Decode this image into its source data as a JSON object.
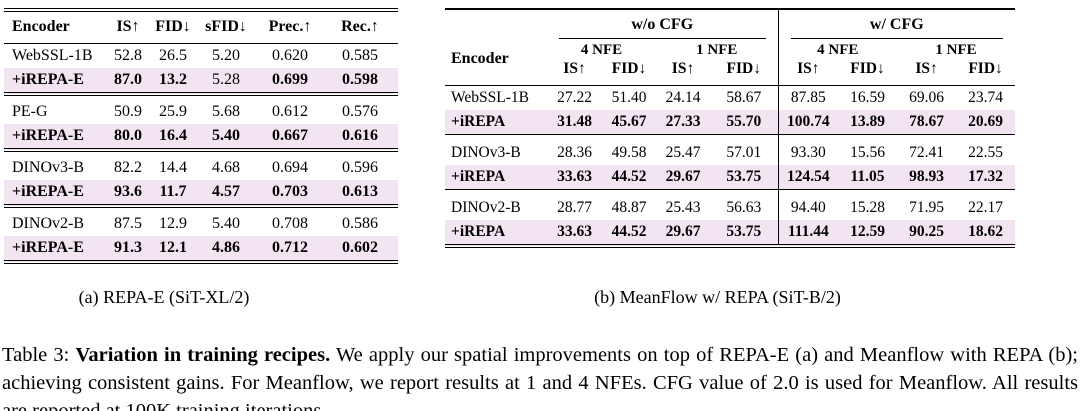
{
  "colors": {
    "highlight_row": "#F2E5F1",
    "rule": "#000000"
  },
  "table_a": {
    "columns": [
      "Encoder",
      "IS↑",
      "FID↓",
      "sFID↓",
      "Prec.↑",
      "Rec.↑"
    ],
    "groups": [
      {
        "rows": [
          {
            "label": "WebSSL-1B",
            "label_bold": false,
            "highlight": false,
            "values": [
              "52.8",
              "26.5",
              "5.20",
              "0.620",
              "0.585"
            ],
            "bold": false
          },
          {
            "label": "+iREPA-E",
            "label_bold": true,
            "highlight": true,
            "values": [
              "87.0",
              "13.2",
              "5.28",
              "0.699",
              "0.598"
            ],
            "bold": [
              true,
              true,
              false,
              true,
              true
            ]
          }
        ]
      },
      {
        "rows": [
          {
            "label": "PE-G",
            "label_bold": false,
            "highlight": false,
            "values": [
              "50.9",
              "25.9",
              "5.68",
              "0.612",
              "0.576"
            ],
            "bold": false
          },
          {
            "label": "+iREPA-E",
            "label_bold": true,
            "highlight": true,
            "values": [
              "80.0",
              "16.4",
              "5.40",
              "0.667",
              "0.616"
            ],
            "bold": true
          }
        ]
      },
      {
        "rows": [
          {
            "label": "DINOv3-B",
            "label_bold": false,
            "highlight": false,
            "values": [
              "82.2",
              "14.4",
              "4.68",
              "0.694",
              "0.596"
            ],
            "bold": false
          },
          {
            "label": "+iREPA-E",
            "label_bold": true,
            "highlight": true,
            "values": [
              "93.6",
              "11.7",
              "4.57",
              "0.703",
              "0.613"
            ],
            "bold": true
          }
        ]
      },
      {
        "rows": [
          {
            "label": "DINOv2-B",
            "label_bold": false,
            "highlight": false,
            "values": [
              "87.5",
              "12.9",
              "5.40",
              "0.708",
              "0.586"
            ],
            "bold": false
          },
          {
            "label": "+iREPA-E",
            "label_bold": true,
            "highlight": true,
            "values": [
              "91.3",
              "12.1",
              "4.86",
              "0.712",
              "0.602"
            ],
            "bold": true
          }
        ]
      }
    ],
    "subcaption": "(a) REPA-E (SiT-XL/2)"
  },
  "table_b": {
    "encoder_header": "Encoder",
    "col_groups": [
      {
        "label": "w/o CFG"
      },
      {
        "label": "w/ CFG"
      }
    ],
    "sub_groups": [
      "4 NFE",
      "1 NFE",
      "4 NFE",
      "1 NFE"
    ],
    "metric_headers": [
      "IS↑",
      "FID↓",
      "IS↑",
      "FID↓",
      "IS↑",
      "FID↓",
      "IS↑",
      "FID↓"
    ],
    "groups": [
      {
        "rows": [
          {
            "label": "WebSSL-1B",
            "label_bold": false,
            "highlight": false,
            "values": [
              "27.22",
              "51.40",
              "24.14",
              "58.67",
              "87.85",
              "16.59",
              "69.06",
              "23.74"
            ],
            "bold": false
          },
          {
            "label": "+iREPA",
            "label_bold": true,
            "highlight": true,
            "values": [
              "31.48",
              "45.67",
              "27.33",
              "55.70",
              "100.74",
              "13.89",
              "78.67",
              "20.69"
            ],
            "bold": true
          }
        ]
      },
      {
        "rows": [
          {
            "label": "DINOv3-B",
            "label_bold": false,
            "highlight": false,
            "values": [
              "28.36",
              "49.58",
              "25.47",
              "57.01",
              "93.30",
              "15.56",
              "72.41",
              "22.55"
            ],
            "bold": false
          },
          {
            "label": "+iREPA",
            "label_bold": true,
            "highlight": true,
            "values": [
              "33.63",
              "44.52",
              "29.67",
              "53.75",
              "124.54",
              "11.05",
              "98.93",
              "17.32"
            ],
            "bold": true
          }
        ]
      },
      {
        "rows": [
          {
            "label": "DINOv2-B",
            "label_bold": false,
            "highlight": false,
            "values": [
              "28.77",
              "48.87",
              "25.43",
              "56.63",
              "94.40",
              "15.28",
              "71.95",
              "22.17"
            ],
            "bold": false
          },
          {
            "label": "+iREPA",
            "label_bold": true,
            "highlight": true,
            "values": [
              "33.63",
              "44.52",
              "29.67",
              "53.75",
              "111.44",
              "12.59",
              "90.25",
              "18.62"
            ],
            "bold": true
          }
        ]
      }
    ],
    "subcaption": "(b) MeanFlow w/ REPA (SiT-B/2)"
  },
  "caption": {
    "prefix": "Table 3:",
    "bold": "Variation in training recipes.",
    "text": "We apply our spatial improvements on top of REPA-E (a) and Meanflow with REPA (b); achieving consistent gains. For Meanflow, we report results at 1 and 4 NFEs. CFG value of 2.0 is used for Meanflow. All results are reported at 100K training iterations."
  }
}
